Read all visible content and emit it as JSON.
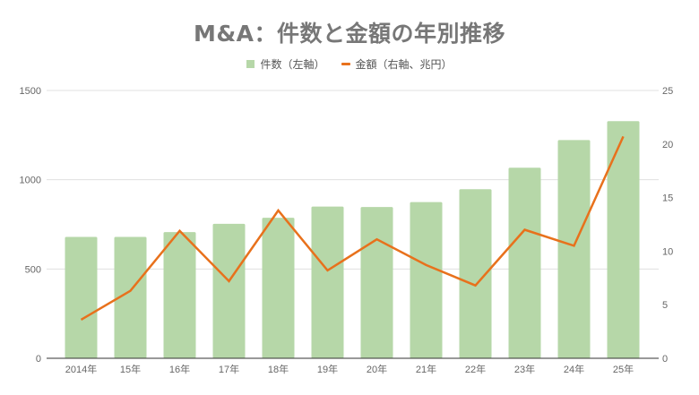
{
  "chart_data": {
    "type": "bar+line",
    "title": "M&A：件数と金額の年別推移",
    "categories": [
      "2014年",
      "15年",
      "16年",
      "17年",
      "18年",
      "19年",
      "20年",
      "21年",
      "22年",
      "23年",
      "24年",
      "25年"
    ],
    "series": [
      {
        "name": "件数（左軸）",
        "type": "bar",
        "axis": "left",
        "color": "#b6d7a8",
        "values": [
          680,
          680,
          707,
          753,
          787,
          850,
          847,
          875,
          947,
          1067,
          1222,
          1328
        ]
      },
      {
        "name": "金額（右軸、兆円）",
        "type": "line",
        "axis": "right",
        "color": "#e8711c",
        "values": [
          3.6,
          6.3,
          11.9,
          7.2,
          13.8,
          8.2,
          11.1,
          8.7,
          6.8,
          12.0,
          10.5,
          20.7
        ]
      }
    ],
    "left_axis": {
      "ticks": [
        0,
        500,
        1000,
        1500
      ],
      "ylim": [
        0,
        1500
      ]
    },
    "right_axis": {
      "ticks": [
        0,
        5,
        10,
        15,
        20,
        25
      ],
      "ylim": [
        0,
        25
      ]
    },
    "xlabel": "",
    "ylabel_left": "",
    "ylabel_right": "",
    "grid": true,
    "legend_position": "top"
  },
  "header": {
    "title": "M&A：件数と金額の年別推移"
  },
  "legend": {
    "items": [
      {
        "label": "件数（左軸）",
        "kind": "bar",
        "color": "#b6d7a8"
      },
      {
        "label": "金額（右軸、兆円）",
        "kind": "line",
        "color": "#e8711c"
      }
    ]
  }
}
